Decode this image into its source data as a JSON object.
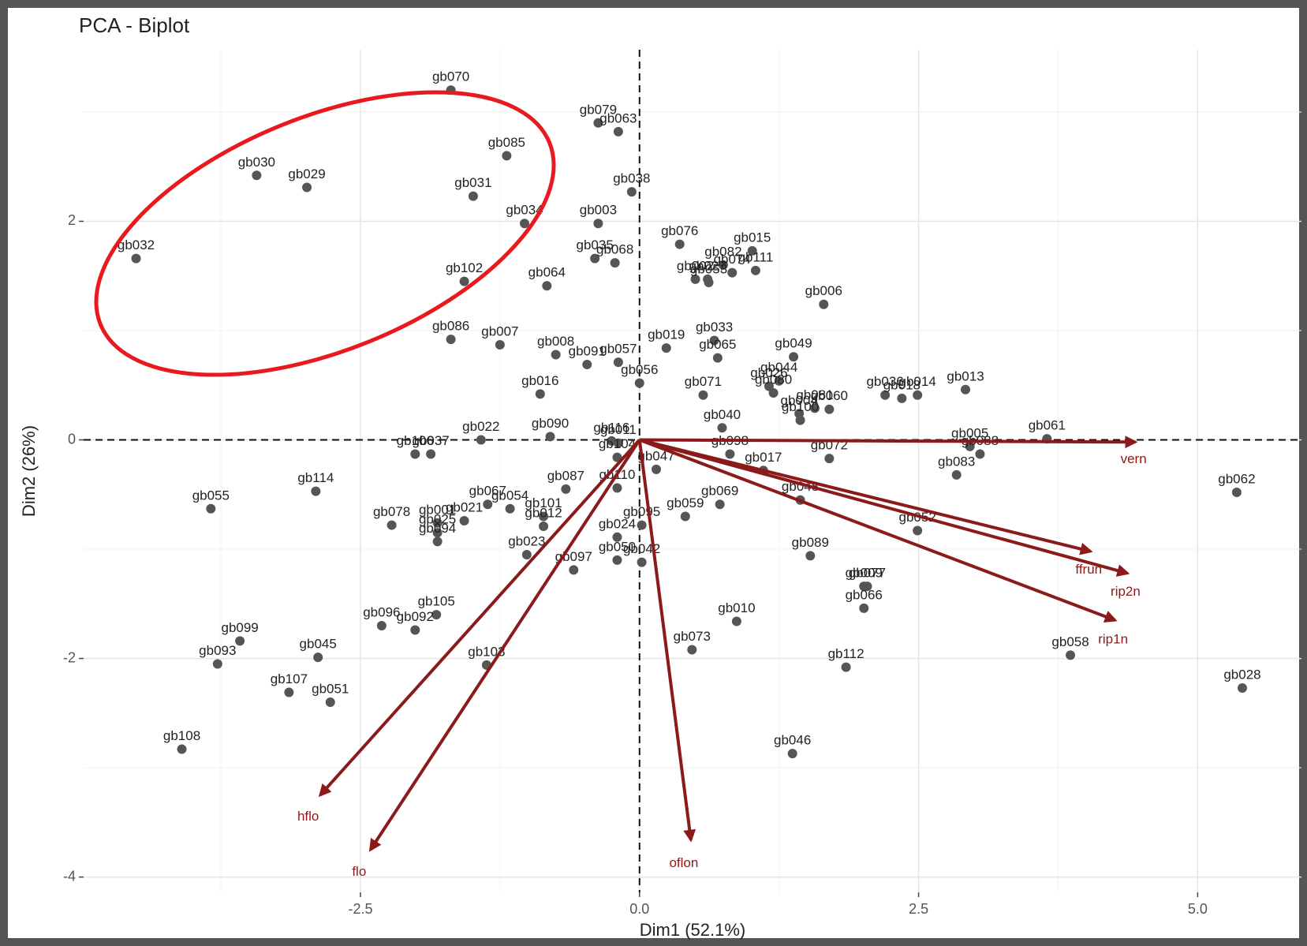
{
  "chart_data": {
    "type": "biplot",
    "title": "PCA - Biplot",
    "x_label": "Dim1 (52.1%)",
    "y_label": "Dim2 (26%)",
    "xlim": [
      -4.98,
      5.93
    ],
    "ylim": [
      -4.14,
      3.57
    ],
    "xticks": [
      -2.5,
      {
        "value": 0,
        "label": "0.0"
      },
      2.5,
      {
        "value": 5,
        "label": "5.0"
      }
    ],
    "yticks": [
      -4,
      -2,
      0,
      2
    ],
    "grid": true,
    "points": {
      "color": "#555555",
      "labels": [
        "gb070",
        "gb079",
        "gb063",
        "gb085",
        "gb030",
        "gb029",
        "gb031",
        "gb034",
        "gb038",
        "gb003",
        "gb032",
        "gb076",
        "gb082",
        "gb015",
        "gb074",
        "gb027",
        "gb111",
        "gb035",
        "gb068",
        "gb102",
        "gb064",
        "gb002",
        "gb053",
        "gb033",
        "gb006",
        "gb086",
        "gb007",
        "gb008",
        "gb019",
        "gb065",
        "gb049",
        "gb057",
        "gb056",
        "gb091",
        "gb016",
        "gb071",
        "gb044",
        "gb036",
        "gb014",
        "gb013",
        "gb026",
        "gb080",
        "gb081",
        "gb018",
        "gb040",
        "gb004",
        "gb100",
        "gb060",
        "gb005",
        "gb088",
        "gb061",
        "gb022",
        "gb090",
        "gb116",
        "gb011",
        "gb106",
        "gb037",
        "gb104",
        "gb114",
        "gb067",
        "gb054",
        "gb087",
        "gb047",
        "gb098",
        "gb017",
        "gb072",
        "gb083",
        "gb048",
        "gb052",
        "gb062",
        "gb055",
        "gb078",
        "gb001",
        "gb025",
        "gb021",
        "gb094",
        "gb101",
        "gb110",
        "gb012",
        "gb024",
        "gb069",
        "gb095",
        "gb059",
        "gb089",
        "gb023",
        "gb050",
        "gb009",
        "gb077",
        "gb066",
        "gb097",
        "gb042",
        "gb105",
        "gb092",
        "gb096",
        "gb099",
        "gb045",
        "gb093",
        "gb107",
        "gb051",
        "gb103",
        "gb108",
        "gb010",
        "gb073",
        "gb112",
        "gb058",
        "gb028",
        "gb046"
      ],
      "x": [
        -1.69,
        -0.37,
        -0.19,
        -1.19,
        -3.43,
        -2.98,
        -1.49,
        -1.03,
        -0.07,
        -0.37,
        -4.51,
        0.36,
        0.75,
        1.01,
        0.83,
        0.61,
        1.04,
        -0.4,
        -0.22,
        -1.57,
        -0.83,
        0.5,
        0.62,
        0.67,
        1.65,
        -1.69,
        -1.25,
        -0.75,
        0.24,
        0.7,
        1.38,
        -0.19,
        0.0,
        -0.47,
        -0.89,
        0.57,
        1.25,
        2.2,
        2.49,
        2.92,
        1.16,
        1.2,
        1.57,
        2.35,
        0.74,
        1.43,
        1.44,
        1.7,
        2.96,
        3.05,
        3.65,
        -1.42,
        -0.8,
        -0.25,
        -0.19,
        -2.01,
        -1.87,
        -0.2,
        -2.9,
        -1.36,
        -1.16,
        -0.66,
        0.15,
        0.81,
        1.11,
        1.7,
        2.84,
        1.44,
        2.49,
        5.35,
        -3.84,
        -2.22,
        -1.81,
        -1.81,
        -1.57,
        -1.81,
        -0.86,
        -0.2,
        -0.86,
        -0.2,
        0.72,
        0.02,
        0.41,
        1.53,
        -1.01,
        -0.2,
        2.01,
        2.04,
        2.01,
        -0.59,
        0.02,
        -1.82,
        -2.01,
        -2.31,
        -3.58,
        -2.88,
        -3.78,
        -3.14,
        -2.77,
        -1.37,
        -4.1,
        0.87,
        0.47,
        1.85,
        3.86,
        5.4,
        1.37
      ],
      "y": [
        3.2,
        2.9,
        2.82,
        2.6,
        2.42,
        2.31,
        2.23,
        1.98,
        2.27,
        1.98,
        1.66,
        1.79,
        1.6,
        1.73,
        1.53,
        1.47,
        1.55,
        1.66,
        1.62,
        1.45,
        1.41,
        1.47,
        1.44,
        0.91,
        1.24,
        0.92,
        0.87,
        0.78,
        0.84,
        0.75,
        0.76,
        0.71,
        0.52,
        0.69,
        0.42,
        0.41,
        0.54,
        0.41,
        0.41,
        0.46,
        0.49,
        0.43,
        0.29,
        0.38,
        0.11,
        0.24,
        0.18,
        0.28,
        -0.06,
        -0.13,
        0.01,
        0.0,
        0.03,
        -0.01,
        -0.03,
        -0.13,
        -0.13,
        -0.16,
        -0.47,
        -0.59,
        -0.63,
        -0.45,
        -0.27,
        -0.13,
        -0.28,
        -0.17,
        -0.32,
        -0.55,
        -0.83,
        -0.48,
        -0.63,
        -0.78,
        -0.76,
        -0.85,
        -0.74,
        -0.93,
        -0.7,
        -0.44,
        -0.79,
        -0.89,
        -0.59,
        -0.78,
        -0.7,
        -1.06,
        -1.05,
        -1.1,
        -1.34,
        -1.34,
        -1.54,
        -1.19,
        -1.12,
        -1.6,
        -1.74,
        -1.7,
        -1.84,
        -1.99,
        -2.05,
        -2.31,
        -2.4,
        -2.06,
        -2.83,
        -1.66,
        -1.92,
        -2.08,
        -1.97,
        -2.27,
        -2.87
      ]
    },
    "variables": {
      "color": "#8b1a1a",
      "labels": [
        "vern",
        "ffrun",
        "rip2n",
        "rip1n",
        "oflon",
        "flo",
        "hflo"
      ],
      "x": [
        4.44,
        4.04,
        4.37,
        4.26,
        0.46,
        -2.41,
        -2.86
      ],
      "y": [
        -0.02,
        -1.02,
        -1.22,
        -1.65,
        -3.66,
        -3.75,
        -3.25
      ]
    }
  }
}
